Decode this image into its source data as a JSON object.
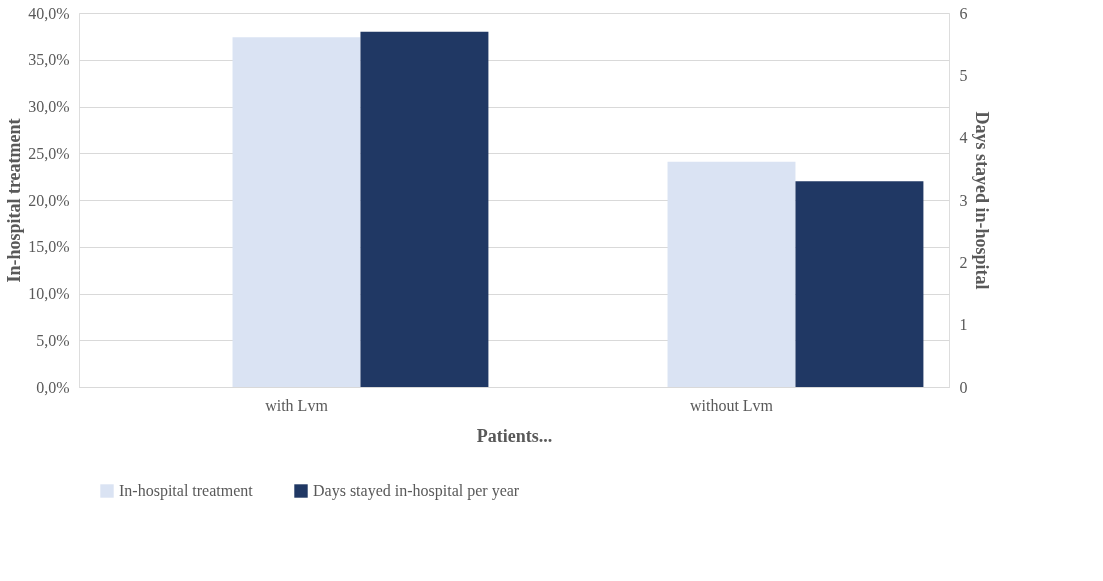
{
  "chart_data": {
    "type": "bar",
    "xlabel": "Patients...",
    "ylabel": "In-hospital treatment",
    "y2label": "Days stayed in-hospital",
    "categories": [
      "with Lvm",
      "without Lvm"
    ],
    "series": [
      {
        "name": "In-hospital treatment",
        "color": "#dae3f3",
        "values": [
          37.4,
          24.1
        ]
      },
      {
        "name": "Days stayed in-hospital per year",
        "color": "#203864",
        "values": [
          5.7,
          3.3
        ],
        "axis": "y2"
      }
    ],
    "ylim": [
      0,
      40
    ],
    "yticks": [
      {
        "value": 0,
        "label": "0,0%"
      },
      {
        "value": 5,
        "label": "5,0%"
      },
      {
        "value": 10,
        "label": "10,0%"
      },
      {
        "value": 15,
        "label": "15,0%"
      },
      {
        "value": 20,
        "label": "20,0%"
      },
      {
        "value": 25,
        "label": "25,0%"
      },
      {
        "value": 30,
        "label": "30,0%"
      },
      {
        "value": 35,
        "label": "35,0%"
      },
      {
        "value": 40,
        "label": "40,0%"
      }
    ],
    "y2lim": [
      0,
      6
    ],
    "y2ticks": [
      0,
      1,
      2,
      3,
      4,
      5,
      6
    ],
    "grid": "y",
    "legend": "bottom"
  }
}
